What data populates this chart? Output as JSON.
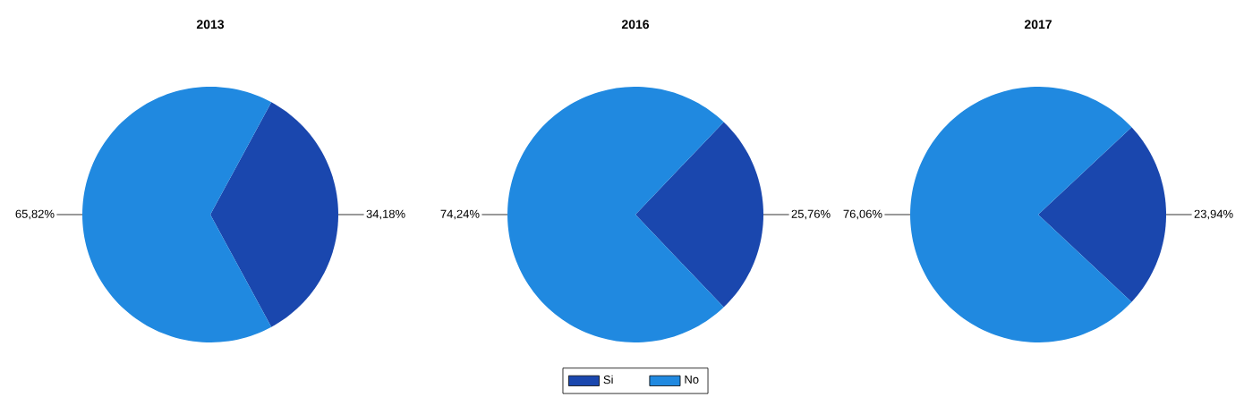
{
  "chart_data": [
    {
      "type": "pie",
      "title": "2013",
      "values": [
        34.18,
        65.82
      ],
      "colors": [
        "#1a47ae",
        "#2089e0"
      ],
      "value_labels": [
        "34,18%",
        "65,82%"
      ]
    },
    {
      "type": "pie",
      "title": "2016",
      "categories": [
        "Si",
        "No"
      ],
      "values": [
        25.76,
        74.24
      ],
      "colors": [
        "#1a47ae",
        "#2089e0"
      ],
      "value_labels": [
        "25,76%",
        "74,24%"
      ],
      "legend": "bottom"
    },
    {
      "type": "pie",
      "title": "2017",
      "values": [
        23.94,
        76.06
      ],
      "colors": [
        "#1a47ae",
        "#2089e0"
      ],
      "value_labels": [
        "23,94%",
        "76,06%"
      ]
    }
  ]
}
